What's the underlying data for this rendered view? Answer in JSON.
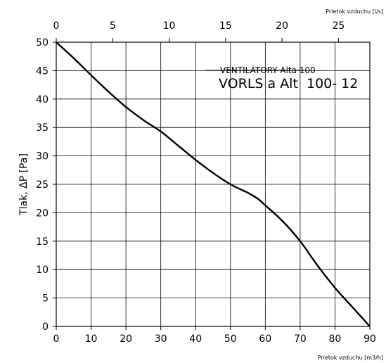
{
  "chart_data": {
    "type": "line",
    "xlabel": "Prietok vzduchu [m3/h]",
    "x2label": "Prietok vzduchu [l/s]",
    "ylabel": "Tlak, ΔP [Pa]",
    "xlim": [
      0,
      90
    ],
    "ylim": [
      0,
      50
    ],
    "x2lim": [
      0,
      27.78
    ],
    "x_ticks": [
      0,
      10,
      20,
      30,
      40,
      50,
      60,
      70,
      80,
      90
    ],
    "x2_ticks": [
      0,
      5,
      10,
      15,
      20,
      25
    ],
    "y_ticks": [
      0,
      5,
      10,
      15,
      20,
      25,
      30,
      35,
      40,
      45,
      50
    ],
    "grid": true,
    "annotations": [
      "VENTILÁTORY Alta 100",
      "VORLS a Alt  100- 12"
    ],
    "series": [
      {
        "x": [
          0,
          5,
          10,
          15,
          20,
          25,
          30,
          35,
          40,
          45,
          50,
          55,
          58,
          60,
          65,
          70,
          75,
          80,
          85,
          90
        ],
        "y": [
          50,
          47.2,
          44.2,
          41.3,
          38.6,
          36.3,
          34.3,
          31.8,
          29.3,
          27.0,
          25.0,
          23.5,
          22.4,
          21.3,
          18.5,
          15.0,
          10.7,
          6.8,
          3.4,
          0
        ]
      }
    ]
  }
}
